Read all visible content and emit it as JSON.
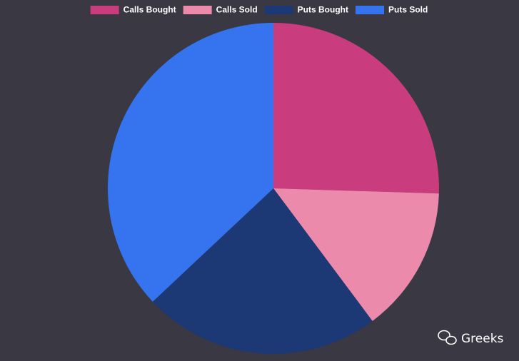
{
  "chart_data": {
    "type": "pie",
    "categories": [
      "Calls Bought",
      "Calls Sold",
      "Puts Bought",
      "Puts Sold"
    ],
    "values": [
      25.5,
      14.3,
      23.2,
      37.0
    ],
    "colors": [
      "#c93d7e",
      "#ec8aab",
      "#1c3875",
      "#3674ef"
    ],
    "legend": "top"
  },
  "watermark": "Greeks"
}
